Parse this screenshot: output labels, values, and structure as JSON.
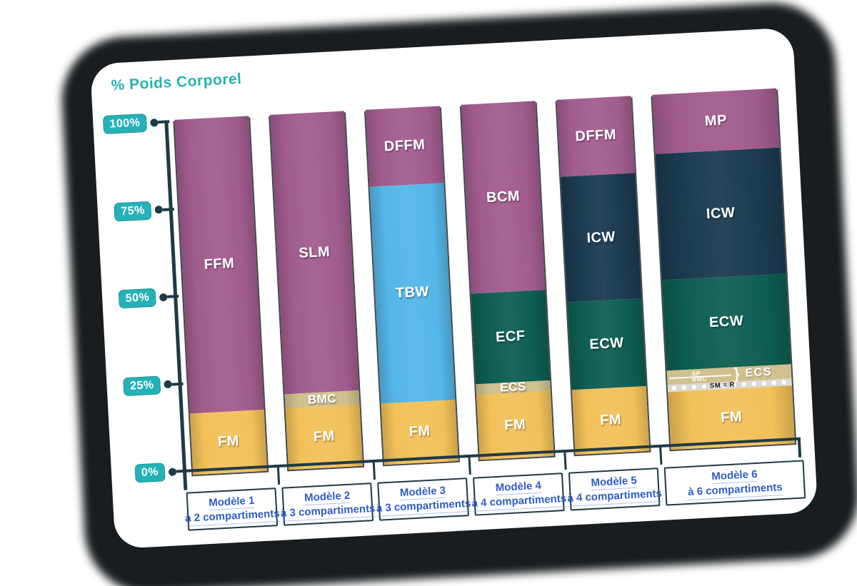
{
  "title": "% Poids Corporel",
  "colors": {
    "accent_teal": "#25b2b7",
    "axis_dark": "#1e3a46",
    "label_blue": "#2f5cc5",
    "fat_yellow": "#f2c159",
    "bone_tan": "#cfc08d",
    "lean_purple": "#a25c8f",
    "water_blue": "#55b6e8",
    "extracellular_teal": "#0d5e52",
    "intracellular_navy": "#1b3a50",
    "residual_strip": "#dcd9d1"
  },
  "chart_data": {
    "type": "bar",
    "stacked": true,
    "title": "% Poids Corporel",
    "ylabel": "% Poids Corporel",
    "ylim": [
      0,
      100
    ],
    "grid": false,
    "legend_position": "none",
    "yticks": [
      {
        "label": "100%",
        "value": 100
      },
      {
        "label": "75%",
        "value": 75
      },
      {
        "label": "50%",
        "value": 50
      },
      {
        "label": "25%",
        "value": 25
      },
      {
        "label": "0%",
        "value": 0
      }
    ],
    "categories": [
      "Modèle 1",
      "Modèle 2",
      "Modèle 3",
      "Modèle 4",
      "Modèle 5",
      "Modèle 6"
    ],
    "bars": [
      {
        "model": "Modèle 1",
        "subtitle": "à 2 compartiments",
        "wide": false,
        "segments": [
          {
            "label": "FM",
            "value": 16,
            "color": "#f2c159"
          },
          {
            "label": "FFM",
            "value": 84,
            "color": "#a25c8f"
          }
        ]
      },
      {
        "model": "Modèle 2",
        "subtitle": "à 3 compartiments",
        "wide": false,
        "segments": [
          {
            "label": "FM",
            "value": 16,
            "color": "#f2c159"
          },
          {
            "label": "BMC",
            "value": 4,
            "color": "#cfc08d",
            "variant": "thin"
          },
          {
            "label": "SLM",
            "value": 80,
            "color": "#a25c8f"
          }
        ]
      },
      {
        "model": "Modèle 3",
        "subtitle": "à 3 compartiments",
        "wide": false,
        "segments": [
          {
            "label": "FM",
            "value": 16,
            "color": "#f2c159"
          },
          {
            "label": "TBW",
            "value": 62,
            "color": "#55b6e8"
          },
          {
            "label": "DFFM",
            "value": 22,
            "color": "#a25c8f"
          }
        ]
      },
      {
        "model": "Modèle 4",
        "subtitle": "à 4 compartiments",
        "wide": false,
        "segments": [
          {
            "label": "FM",
            "value": 17,
            "color": "#f2c159"
          },
          {
            "label": "ECS",
            "value": 3,
            "color": "#cfc08d",
            "variant": "thin"
          },
          {
            "label": "ECF",
            "value": 26,
            "color": "#0d5e52"
          },
          {
            "label": "BCM",
            "value": 54,
            "color": "#a25c8f"
          }
        ]
      },
      {
        "model": "Modèle 5",
        "subtitle": "à 4 compartiments",
        "wide": false,
        "segments": [
          {
            "label": "FM",
            "value": 17,
            "color": "#f2c159"
          },
          {
            "label": "ECW",
            "value": 25,
            "color": "#0d5e52"
          },
          {
            "label": "ICW",
            "value": 36,
            "color": "#1b3a50"
          },
          {
            "label": "DFFM",
            "value": 22,
            "color": "#a25c8f"
          }
        ]
      },
      {
        "model": "Modèle 6",
        "subtitle": "à 6 compartiments",
        "wide": true,
        "segments": [
          {
            "label": "FM",
            "value": 15,
            "color": "#f2c159"
          },
          {
            "label": "SM = R",
            "value": 2,
            "color": "#dcd9d1",
            "variant": "dotted"
          },
          {
            "label": "ECS",
            "value": 4,
            "color": "#cfc08d",
            "variant": "ecs_split",
            "sublabels": [
              "SP",
              "BMC"
            ],
            "brace": "}"
          },
          {
            "label": "ECW",
            "value": 26,
            "color": "#0d5e52"
          },
          {
            "label": "ICW",
            "value": 36,
            "color": "#1b3a50"
          },
          {
            "label": "MP",
            "value": 17,
            "color": "#a25c8f"
          }
        ]
      }
    ]
  }
}
